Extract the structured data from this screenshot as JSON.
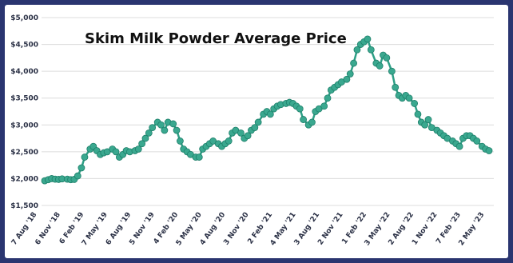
{
  "chart_data": {
    "type": "line",
    "title": "Skim Milk Powder Average Price",
    "xlabel": "",
    "ylabel": "",
    "ylim": [
      1500,
      5000
    ],
    "y_ticks": [
      "$1,500",
      "$2,000",
      "$2,500",
      "$3,000",
      "$3,500",
      "$4,000",
      "$4,500",
      "$5,000"
    ],
    "y_tick_values": [
      1500,
      2000,
      2500,
      3000,
      3500,
      4000,
      4500,
      5000
    ],
    "x_ticks": [
      "7 Aug '18",
      "6 Nov '18",
      "6 Feb '19",
      "7 May '19",
      "6 Aug '19",
      "5 Nov '19",
      "4 Feb '20",
      "5 May '20",
      "4 Aug '20",
      "3 Nov '20",
      "2 Feb '21",
      "4 May '21",
      "3 Aug '21",
      "2 Nov '21",
      "1 Feb '22",
      "3 May '22",
      "2 Aug '22",
      "1 Nov '22",
      "7 Feb '23",
      "2 May '23"
    ],
    "grid": true,
    "line_color": "#2e9f86",
    "marker_color": "#3aa88f",
    "series": [
      {
        "x": [
          "2018-08-07",
          "2018-08-21",
          "2018-09-04",
          "2018-09-18",
          "2018-10-02",
          "2018-10-16",
          "2018-11-06",
          "2018-11-20",
          "2018-12-04",
          "2018-12-18",
          "2019-01-02",
          "2019-01-15",
          "2019-02-06",
          "2019-02-19",
          "2019-03-05",
          "2019-03-19",
          "2019-04-02",
          "2019-04-16",
          "2019-05-07",
          "2019-05-21",
          "2019-06-04",
          "2019-06-18",
          "2019-07-02",
          "2019-07-16",
          "2019-08-06",
          "2019-08-20",
          "2019-09-03",
          "2019-09-17",
          "2019-10-01",
          "2019-10-15",
          "2019-11-05",
          "2019-11-19",
          "2019-12-03",
          "2019-12-17",
          "2020-01-07",
          "2020-01-21",
          "2020-02-04",
          "2020-02-18",
          "2020-03-03",
          "2020-03-17",
          "2020-04-07",
          "2020-04-21",
          "2020-05-05",
          "2020-05-19",
          "2020-06-02",
          "2020-06-16",
          "2020-07-07",
          "2020-07-21",
          "2020-08-04",
          "2020-08-18",
          "2020-09-01",
          "2020-09-15",
          "2020-10-06",
          "2020-10-20",
          "2020-11-03",
          "2020-11-17",
          "2020-12-01",
          "2020-12-15",
          "2021-01-05",
          "2021-01-19",
          "2021-02-02",
          "2021-02-16",
          "2021-03-02",
          "2021-03-16",
          "2021-04-06",
          "2021-04-20",
          "2021-05-04",
          "2021-05-18",
          "2021-06-01",
          "2021-06-15",
          "2021-07-06",
          "2021-07-20",
          "2021-08-03",
          "2021-08-17",
          "2021-09-07",
          "2021-09-21",
          "2021-10-05",
          "2021-10-19",
          "2021-11-02",
          "2021-11-16",
          "2021-12-07",
          "2021-12-21",
          "2022-01-04",
          "2022-01-18",
          "2022-02-01",
          "2022-02-15",
          "2022-03-01",
          "2022-03-15",
          "2022-04-05",
          "2022-04-19",
          "2022-05-03",
          "2022-05-17",
          "2022-06-07",
          "2022-06-21",
          "2022-07-05",
          "2022-07-19",
          "2022-08-02",
          "2022-08-16",
          "2022-09-06",
          "2022-09-20",
          "2022-10-04",
          "2022-10-18",
          "2022-11-01",
          "2022-11-15",
          "2022-12-06",
          "2022-12-20",
          "2023-01-03",
          "2023-01-17",
          "2023-02-07",
          "2023-02-21",
          "2023-03-07",
          "2023-03-21",
          "2023-04-04",
          "2023-04-18",
          "2023-05-02",
          "2023-05-16",
          "2023-06-06",
          "2023-06-20",
          "2023-07-04"
        ],
        "values": [
          1960,
          1980,
          2000,
          1990,
          1985,
          1995,
          1990,
          1980,
          1985,
          2050,
          2200,
          2400,
          2550,
          2600,
          2520,
          2450,
          2480,
          2500,
          2550,
          2500,
          2400,
          2450,
          2520,
          2500,
          2520,
          2550,
          2650,
          2750,
          2850,
          2950,
          3050,
          3000,
          2900,
          3050,
          3020,
          2900,
          2700,
          2550,
          2500,
          2450,
          2400,
          2400,
          2550,
          2600,
          2650,
          2700,
          2650,
          2600,
          2650,
          2700,
          2850,
          2900,
          2850,
          2750,
          2800,
          2900,
          2950,
          3050,
          3200,
          3250,
          3200,
          3300,
          3350,
          3380,
          3400,
          3420,
          3400,
          3350,
          3300,
          3100,
          3000,
          3050,
          3250,
          3300,
          3350,
          3500,
          3650,
          3700,
          3750,
          3800,
          3850,
          3950,
          4150,
          4400,
          4500,
          4550,
          4600,
          4400,
          4150,
          4100,
          4300,
          4250,
          4000,
          3700,
          3550,
          3500,
          3550,
          3500,
          3400,
          3200,
          3050,
          3000,
          3100,
          2950,
          2900,
          2850,
          2800,
          2750,
          2700,
          2650,
          2600,
          2750,
          2800,
          2800,
          2750,
          2700,
          2600,
          2550,
          2520
        ]
      }
    ]
  }
}
